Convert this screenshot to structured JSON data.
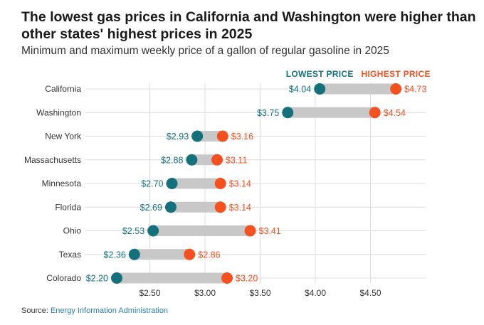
{
  "title": "The lowest gas prices in California and Washington were higher than other states' highest prices in 2025",
  "subtitle": "Minimum and maximum weekly price of a gallon of regular gasoline in 2025",
  "source": {
    "prefix": "Source: ",
    "name": "Energy Information Administration"
  },
  "colors": {
    "low": "#14717c",
    "high": "#f4511e",
    "bar": "#c8c8c8",
    "grid": "#dcdcdc"
  },
  "chart_data": {
    "type": "dumbbell",
    "legend": {
      "low": "LOWEST PRICE",
      "high": "HIGHEST PRICE",
      "placement": "top-right"
    },
    "xlim": [
      2.0,
      5.0
    ],
    "xticks": [
      2.5,
      3.0,
      3.5,
      4.0,
      4.5
    ],
    "xtick_labels": [
      "$2.50",
      "$3.00",
      "$3.50",
      "$4.00",
      "$4.50"
    ],
    "grid": true,
    "categories": [
      "California",
      "Washington",
      "New York",
      "Massachusetts",
      "Minnesota",
      "Florida",
      "Ohio",
      "Texas",
      "Colorado"
    ],
    "series": [
      {
        "key": "low",
        "values": [
          4.04,
          3.75,
          2.93,
          2.88,
          2.7,
          2.69,
          2.53,
          2.36,
          2.2
        ],
        "labels": [
          "$4.04",
          "$3.75",
          "$2.93",
          "$2.88",
          "$2.70",
          "$2.69",
          "$2.53",
          "$2.36",
          "$2.20"
        ]
      },
      {
        "key": "high",
        "values": [
          4.73,
          4.54,
          3.16,
          3.11,
          3.14,
          3.14,
          3.41,
          2.86,
          3.2
        ],
        "labels": [
          "$4.73",
          "$4.54",
          "$3.16",
          "$3.11",
          "$3.14",
          "$3.14",
          "$3.41",
          "$2.86",
          "$3.20"
        ]
      }
    ]
  }
}
